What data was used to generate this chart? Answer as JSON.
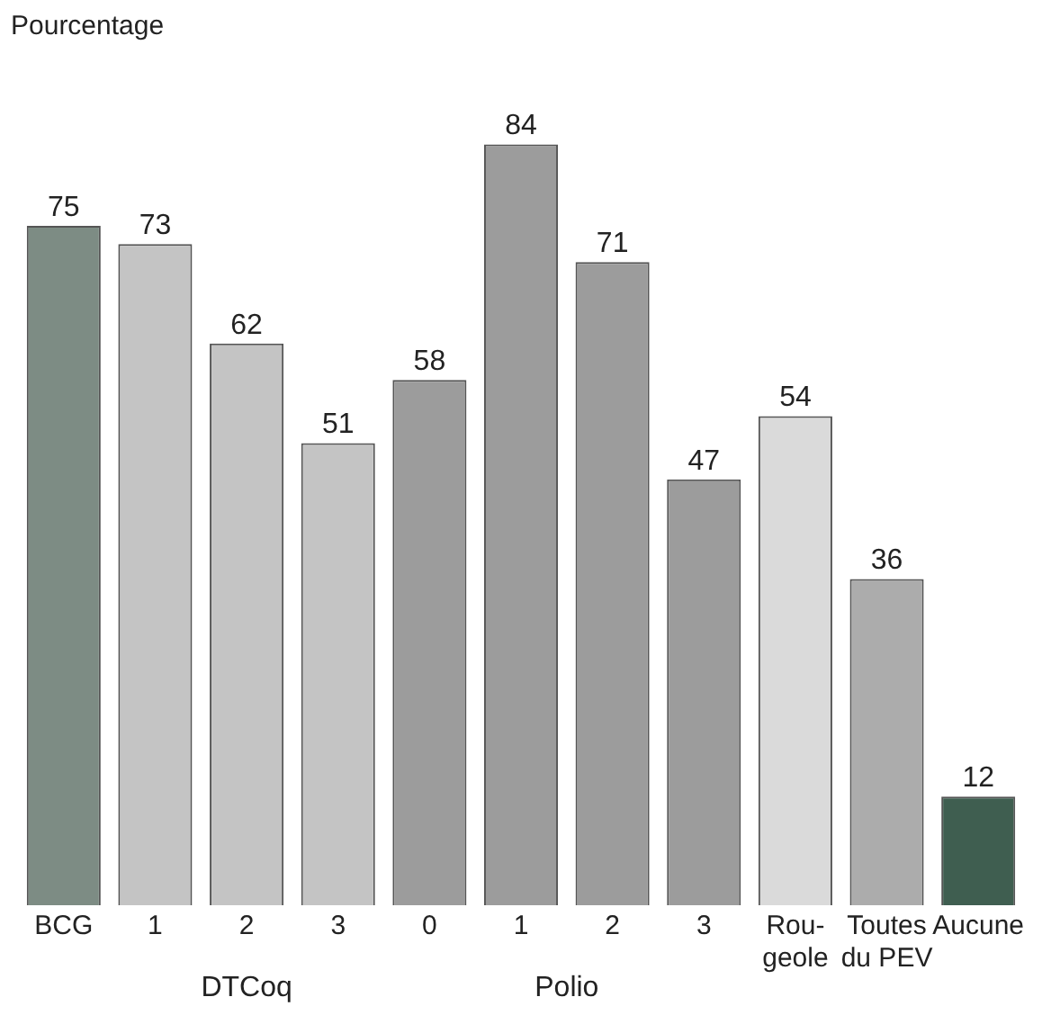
{
  "chart_data": {
    "type": "bar",
    "ylabel": "Pourcentage",
    "categories": [
      "BCG",
      "1",
      "2",
      "3",
      "0",
      "1",
      "2",
      "3",
      "Rou-\ngeole",
      "Toutes\ndu PEV",
      "Aucune"
    ],
    "values": [
      75,
      73,
      62,
      51,
      58,
      84,
      71,
      47,
      54,
      36,
      12
    ],
    "colors": [
      "#7d8c84",
      "#c4c4c4",
      "#c4c4c4",
      "#c4c4c4",
      "#9c9c9c",
      "#9c9c9c",
      "#9c9c9c",
      "#9c9c9c",
      "#dadada",
      "#acacac",
      "#3f5e50"
    ],
    "annotations": [
      "DTCoq",
      "Polio"
    ],
    "data_labels": true,
    "grid": false,
    "legend": false
  }
}
